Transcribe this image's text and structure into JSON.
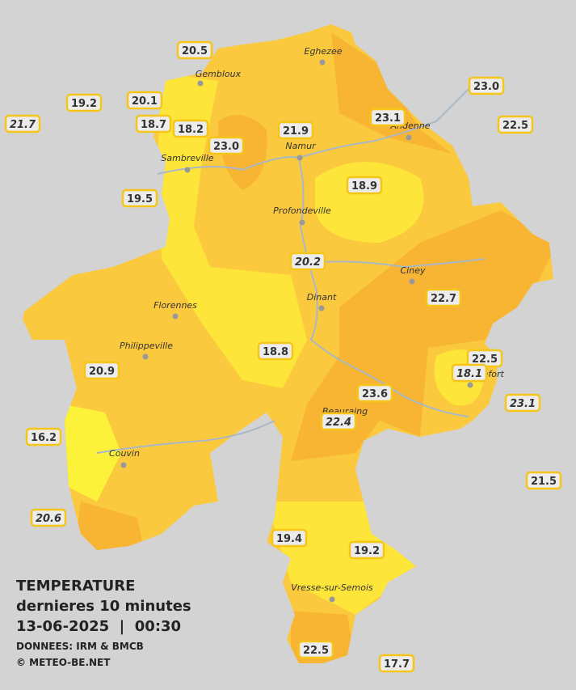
{
  "header": {
    "title": "TEMPERATURE",
    "subtitle": "dernieres 10 minutes",
    "datetime": "13-06-2025  |  00:30",
    "source": "DONNEES: IRM & BMCB",
    "credit": "© METEO-BE.NET"
  },
  "towns": [
    {
      "name": "Eghezee"
    },
    {
      "name": "Gembloux"
    },
    {
      "name": "Andenne"
    },
    {
      "name": "Namur"
    },
    {
      "name": "Sambreville"
    },
    {
      "name": "Profondeville"
    },
    {
      "name": "Ciney"
    },
    {
      "name": "Dinant"
    },
    {
      "name": "Florennes"
    },
    {
      "name": "Philippeville"
    },
    {
      "name": "Rochefort"
    },
    {
      "name": "Beauraing"
    },
    {
      "name": "Couvin"
    },
    {
      "name": "Vresse-sur-Semois"
    }
  ],
  "stations": [
    {
      "value": "20.5",
      "italic": false
    },
    {
      "value": "19.2",
      "italic": false
    },
    {
      "value": "20.1",
      "italic": false
    },
    {
      "value": "21.7",
      "italic": true
    },
    {
      "value": "18.7",
      "italic": false
    },
    {
      "value": "18.2",
      "italic": false
    },
    {
      "value": "23.0",
      "italic": false
    },
    {
      "value": "21.9",
      "italic": false
    },
    {
      "value": "23.1",
      "italic": false
    },
    {
      "value": "23.0",
      "italic": false
    },
    {
      "value": "22.5",
      "italic": false
    },
    {
      "value": "19.5",
      "italic": false
    },
    {
      "value": "18.9",
      "italic": false
    },
    {
      "value": "20.2",
      "italic": true
    },
    {
      "value": "22.7",
      "italic": false
    },
    {
      "value": "18.8",
      "italic": false
    },
    {
      "value": "22.5",
      "italic": false
    },
    {
      "value": "18.1",
      "italic": true
    },
    {
      "value": "20.9",
      "italic": false
    },
    {
      "value": "23.6",
      "italic": false
    },
    {
      "value": "23.1",
      "italic": true
    },
    {
      "value": "22.4",
      "italic": true
    },
    {
      "value": "16.2",
      "italic": false
    },
    {
      "value": "21.5",
      "italic": false
    },
    {
      "value": "20.6",
      "italic": true
    },
    {
      "value": "19.4",
      "italic": false
    },
    {
      "value": "19.2",
      "italic": false
    },
    {
      "value": "22.5",
      "italic": false
    },
    {
      "value": "17.7",
      "italic": false
    }
  ]
}
